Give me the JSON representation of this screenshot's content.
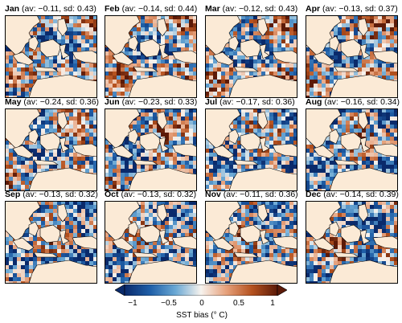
{
  "panels": [
    {
      "month": "Jan",
      "stats": "(av: −0.11, sd: 0.43)"
    },
    {
      "month": "Feb",
      "stats": "(av: −0.14, sd: 0.44)"
    },
    {
      "month": "Mar",
      "stats": "(av: −0.12, sd: 0.43)"
    },
    {
      "month": "Apr",
      "stats": "(av: −0.13, sd: 0.37)"
    },
    {
      "month": "May",
      "stats": "(av: −0.24, sd: 0.36)"
    },
    {
      "month": "Jun",
      "stats": "(av: −0.23, sd: 0.33)"
    },
    {
      "month": "Jul",
      "stats": "(av: −0.17, sd: 0.36)"
    },
    {
      "month": "Aug",
      "stats": "(av: −0.16, sd: 0.34)"
    },
    {
      "month": "Sep",
      "stats": "(av: −0.13, sd: 0.32)"
    },
    {
      "month": "Oct",
      "stats": "(av: −0.13, sd: 0.32)"
    },
    {
      "month": "Nov",
      "stats": "(av: −0.11, sd: 0.36)"
    },
    {
      "month": "Dec",
      "stats": "(av: −0.14, sd: 0.39)"
    }
  ],
  "colorbar": {
    "ticks": [
      "−1",
      "−0.5",
      "0",
      "0.5",
      "1"
    ],
    "label": "SST bias (° C)",
    "colors": [
      "#0a2a6b",
      "#1f5fa8",
      "#6aa8d4",
      "#f7f3ee",
      "#e6a07a",
      "#b5521f",
      "#5c1a08"
    ]
  }
}
